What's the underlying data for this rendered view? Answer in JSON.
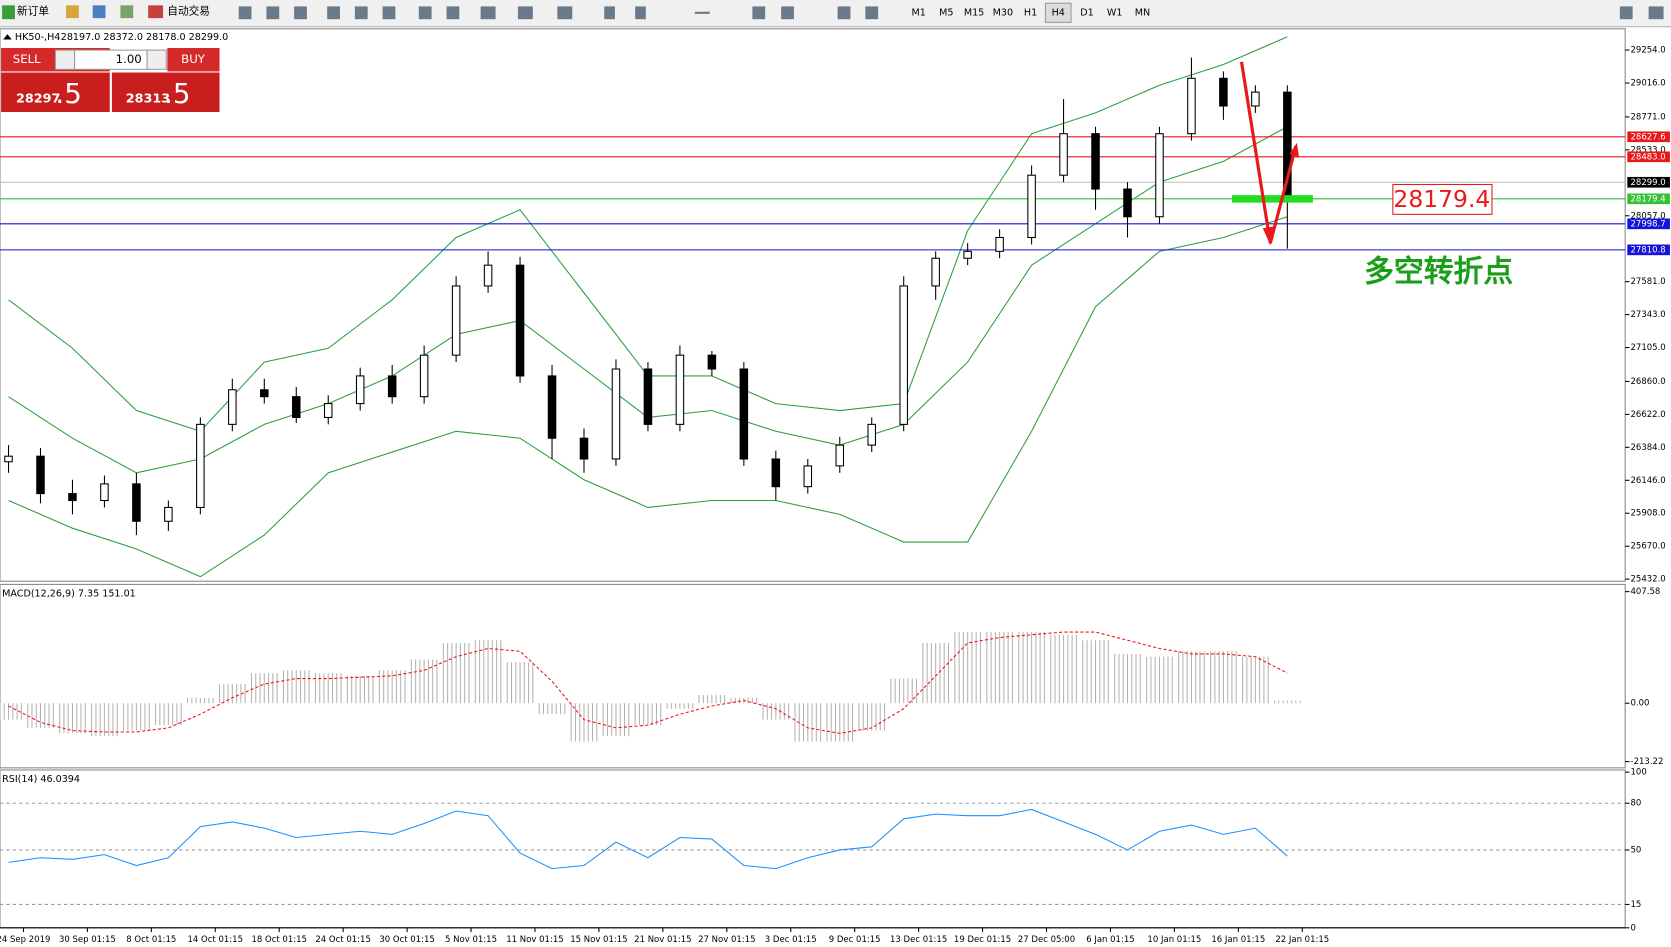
{
  "toolbar": {
    "new_order": "新订单",
    "auto_trading": "自动交易",
    "timeframes": [
      "M1",
      "M5",
      "M15",
      "M30",
      "H1",
      "H4",
      "D1",
      "W1",
      "MN"
    ]
  },
  "order_panel": {
    "sell": "SELL",
    "lots": "1.00",
    "buy": "BUY",
    "bid_big": "28297",
    "bid_small": ".5",
    "ask_big": "28313",
    "ask_small": ".5"
  },
  "chart_data": {
    "type": "candlestick",
    "title": "HK50-,H4",
    "ohlc_header": "28197.0 28372.0 28178.0 28299.0",
    "x_labels": [
      "24 Sep 2019",
      "30 Sep 01:15",
      "8 Oct 01:15",
      "14 Oct 01:15",
      "18 Oct 01:15",
      "24 Oct 01:15",
      "30 Oct 01:15",
      "5 Nov 01:15",
      "11 Nov 01:15",
      "15 Nov 01:15",
      "21 Nov 01:15",
      "27 Nov 01:15",
      "3 Dec 01:15",
      "9 Dec 01:15",
      "13 Dec 01:15",
      "19 Dec 01:15",
      "27 Dec 05:00",
      "6 Jan 01:15",
      "10 Jan 01:15",
      "16 Jan 01:15",
      "22 Jan 01:15"
    ],
    "open": [
      26280,
      26320,
      26050,
      26000,
      26120,
      25850,
      25950,
      26550,
      26800,
      26750,
      26600,
      26700,
      26900,
      26750,
      27050,
      27550,
      27700,
      26900,
      26450,
      26300,
      26950,
      26550,
      27050,
      26950,
      26300,
      26100,
      26250,
      26400,
      26550,
      27550,
      27750,
      27800,
      27900,
      28350,
      28650,
      28250,
      28050,
      28650,
      29050,
      28850,
      28950
    ],
    "high": [
      26400,
      26380,
      26150,
      26180,
      26200,
      26000,
      26600,
      26880,
      26880,
      26820,
      26760,
      26960,
      26980,
      27120,
      27620,
      27800,
      27760,
      26980,
      26520,
      27020,
      27000,
      27120,
      27080,
      27000,
      26360,
      26300,
      26460,
      26600,
      27620,
      27800,
      27860,
      27960,
      28420,
      28900,
      28700,
      28300,
      28700,
      29200,
      29100,
      29000,
      29000
    ],
    "low": [
      26200,
      25980,
      25900,
      25950,
      25750,
      25780,
      25900,
      26500,
      26700,
      26560,
      26550,
      26650,
      26700,
      26700,
      27000,
      27500,
      26850,
      26300,
      26200,
      26250,
      26500,
      26500,
      26900,
      26250,
      26000,
      26050,
      26200,
      26350,
      26500,
      27450,
      27700,
      27750,
      27850,
      28300,
      28100,
      27900,
      28000,
      28600,
      28750,
      28800,
      27820
    ],
    "close": [
      26320,
      26050,
      26000,
      26120,
      25850,
      25950,
      26550,
      26800,
      26750,
      26600,
      26700,
      26900,
      26750,
      27050,
      27550,
      27700,
      26900,
      26450,
      26300,
      26950,
      26550,
      27050,
      26950,
      26300,
      26100,
      26250,
      26400,
      26550,
      27550,
      27750,
      27800,
      27900,
      28350,
      28650,
      28250,
      28050,
      28650,
      29050,
      28850,
      28950,
      28180
    ],
    "bands": {
      "color": "#2e9e3e",
      "upper": [
        27450,
        27100,
        26650,
        26500,
        27000,
        27100,
        27450,
        27900,
        28100,
        27500,
        26900,
        26900,
        26700,
        26650,
        26700,
        27950,
        28650,
        28800,
        29000,
        29150,
        29350
      ],
      "middle": [
        26750,
        26450,
        26200,
        26300,
        26550,
        26700,
        26900,
        27200,
        27300,
        26950,
        26600,
        26650,
        26500,
        26400,
        26550,
        27000,
        27700,
        28000,
        28300,
        28450,
        28700
      ],
      "lower": [
        26000,
        25800,
        25650,
        25450,
        25750,
        26200,
        26350,
        26500,
        26450,
        26150,
        25950,
        26000,
        26000,
        25900,
        25700,
        25700,
        26500,
        27400,
        27800,
        27900,
        28050
      ]
    },
    "ylim": [
      25417,
      29400
    ],
    "yticks": [
      {
        "value": 29254,
        "label": "29254.0"
      },
      {
        "value": 29016,
        "label": "29016.0"
      },
      {
        "value": 28771,
        "label": "28771.0"
      },
      {
        "value": 28533,
        "label": "28533.0"
      },
      {
        "value": 28057,
        "label": "28057.0"
      },
      {
        "value": 27581,
        "label": "27581.0"
      },
      {
        "value": 27343,
        "label": "27343.0"
      },
      {
        "value": 27105,
        "label": "27105.0"
      },
      {
        "value": 26860,
        "label": "26860.0"
      },
      {
        "value": 26622,
        "label": "26622.0"
      },
      {
        "value": 26384,
        "label": "26384.0"
      },
      {
        "value": 26146,
        "label": "26146.0"
      },
      {
        "value": 25908,
        "label": "25908.0"
      },
      {
        "value": 25670,
        "label": "25670.0"
      },
      {
        "value": 25432,
        "label": "25432.0"
      }
    ],
    "levels": [
      {
        "value": 28627.6,
        "label": "28627.6",
        "color": "#e8191b"
      },
      {
        "value": 28483,
        "label": "28483.0",
        "color": "#e8191b"
      },
      {
        "value": 28299,
        "label": "28299.0",
        "color": "#000000"
      },
      {
        "value": 28179.4,
        "label": "28179.4",
        "color": "#33c233"
      },
      {
        "value": 27998.7,
        "label": "27998.7",
        "color": "#1414d8"
      },
      {
        "value": 27810.8,
        "label": "27810.8",
        "color": "#1414d8"
      }
    ],
    "annotation": "多空转折点",
    "annotation_color": "#1a9e1a",
    "macd": {
      "label": "MACD(12,26,9) 7.35 151.01",
      "histogram": [
        -60,
        -90,
        -110,
        -120,
        -100,
        -80,
        20,
        70,
        110,
        120,
        110,
        100,
        120,
        160,
        220,
        230,
        150,
        -40,
        -140,
        -120,
        -80,
        -20,
        30,
        20,
        -60,
        -140,
        -140,
        -100,
        90,
        220,
        260,
        260,
        260,
        250,
        230,
        180,
        170,
        190,
        190,
        170,
        10
      ],
      "signal": [
        -10,
        -70,
        -100,
        -105,
        -105,
        -90,
        -40,
        20,
        70,
        90,
        90,
        95,
        100,
        120,
        170,
        200,
        190,
        80,
        -60,
        -90,
        -80,
        -40,
        -10,
        10,
        -20,
        -90,
        -110,
        -90,
        -20,
        100,
        220,
        240,
        250,
        260,
        260,
        230,
        200,
        180,
        180,
        170,
        110
      ],
      "signal_color": "#e8191b",
      "ylim": [
        -236,
        434
      ],
      "yticks": [
        {
          "value": 407.58,
          "label": "407.58"
        },
        {
          "value": 0,
          "label": "0.00"
        },
        {
          "value": -213.22,
          "label": "-213.22"
        }
      ]
    },
    "rsi": {
      "label": "RSI(14) 46.0394",
      "values": [
        42,
        45,
        44,
        47,
        40,
        45,
        65,
        68,
        64,
        58,
        60,
        62,
        60,
        67,
        75,
        72,
        48,
        38,
        40,
        55,
        45,
        58,
        57,
        40,
        38,
        45,
        50,
        52,
        70,
        73,
        72,
        72,
        76,
        68,
        60,
        50,
        62,
        66,
        60,
        64,
        46
      ],
      "color": "#1e90ff",
      "ylim": [
        0,
        100
      ],
      "yticks": [
        100,
        80,
        50,
        15,
        0
      ],
      "levels": [
        80,
        50,
        15
      ]
    }
  }
}
